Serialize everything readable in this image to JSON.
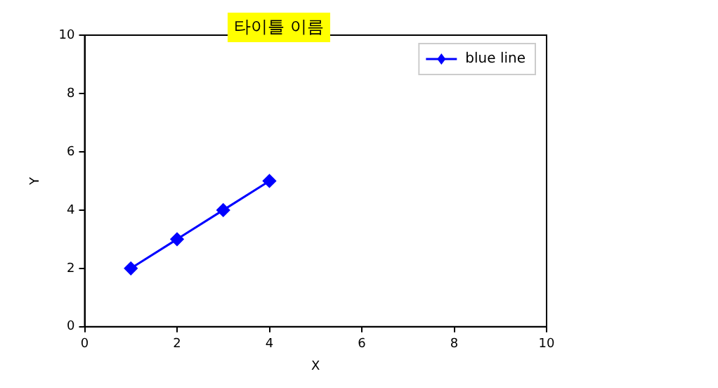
{
  "chart_data": {
    "type": "line",
    "title": "타이틀 이름",
    "xlabel": "X",
    "ylabel": "Y",
    "x": [
      1,
      2,
      3,
      4
    ],
    "series": [
      {
        "name": "blue line",
        "color": "#0000ff",
        "values": [
          2,
          3,
          4,
          5
        ]
      }
    ],
    "xlim": [
      0,
      10
    ],
    "xticks": [
      0,
      2,
      4,
      6,
      8,
      10
    ],
    "ylim": [
      0,
      10
    ],
    "yticks": [
      0,
      2,
      4,
      6,
      8,
      10
    ],
    "grid": false,
    "legend": "top right",
    "marker": "diamond",
    "line_style": "solid"
  }
}
